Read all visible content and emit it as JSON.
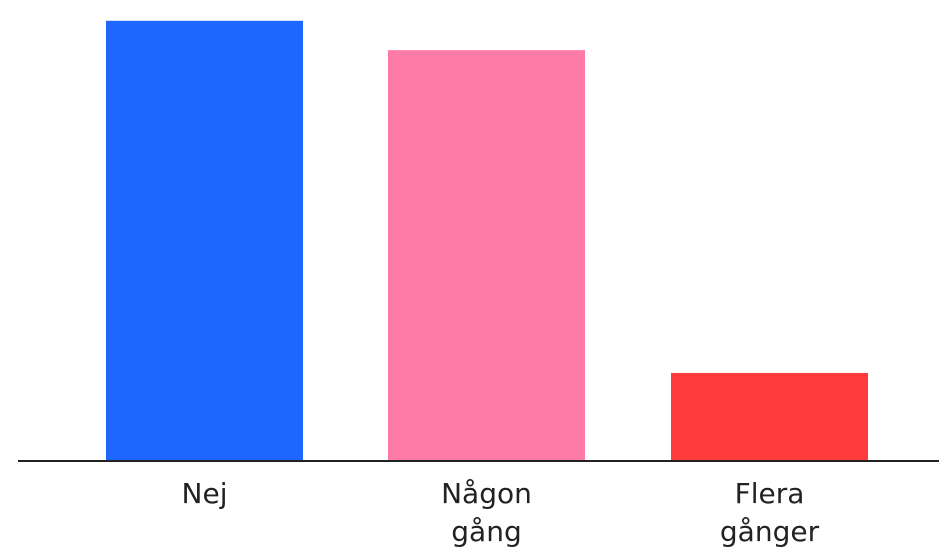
{
  "chart_data": {
    "type": "bar",
    "title": "",
    "xlabel": "",
    "ylabel": "",
    "categories": [
      [
        "Nej"
      ],
      [
        "Någon",
        "gång"
      ],
      [
        "Flera",
        "gånger"
      ]
    ],
    "values": [
      45,
      42,
      9
    ],
    "ylim": [
      0,
      46
    ],
    "colors": [
      "#1f66ff",
      "#ff7ba7",
      "#ff3b3b"
    ],
    "grid": false,
    "legend": "none",
    "axis_color": "#222222"
  }
}
